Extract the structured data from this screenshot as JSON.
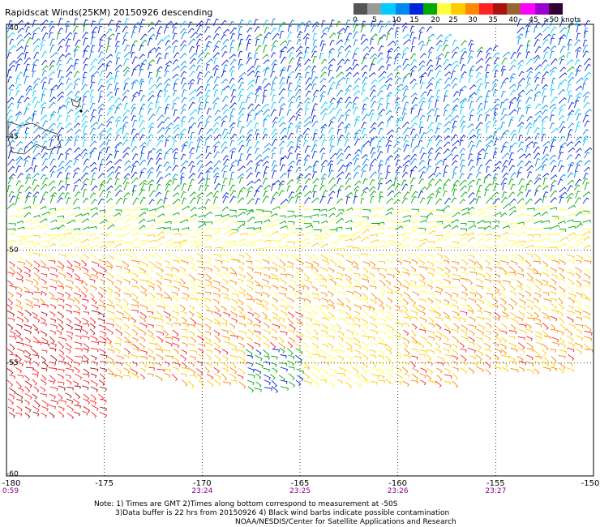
{
  "title": "Rapidscat Winds(25KM) 20150926 descending",
  "legend": {
    "colors": [
      "#555555",
      "#999999",
      "#00ccff",
      "#0088ee",
      "#0022dd",
      "#00aa00",
      "#ffff44",
      "#ffcc00",
      "#ff8800",
      "#ff2222",
      "#aa1111",
      "#996633",
      "#ff00ff",
      "#9900cc",
      "#330033"
    ],
    "labels": [
      "0",
      "5",
      "10",
      "15",
      "20",
      "25",
      "30",
      "35",
      "40",
      "45",
      ">50 knots"
    ]
  },
  "map": {
    "lat_labels": [
      "-40",
      "-45",
      "-50",
      "-55",
      "-60"
    ],
    "lon_labels": [
      "-180",
      "-175",
      "-170",
      "-165",
      "-160",
      "-155",
      "-150"
    ],
    "time_labels": [
      "0:59",
      "23:24",
      "23:25",
      "23:26",
      "23:27"
    ],
    "grid": "dotted",
    "data_coverage": "wind barbs colored by speed; blue/cyan in north, green band near -48, yellow/orange/red in south, no data south of ~-56"
  },
  "notes": {
    "line1": "Note: 1) Times are GMT 2)Times along bottom correspond to measurement at -50S",
    "line2": "3)Data buffer is 22 hrs from 20150926 4) Black wind barbs indicate possible contamination",
    "line3": "NOAA/NESDIS/Center for Satellite Applications and Research"
  }
}
